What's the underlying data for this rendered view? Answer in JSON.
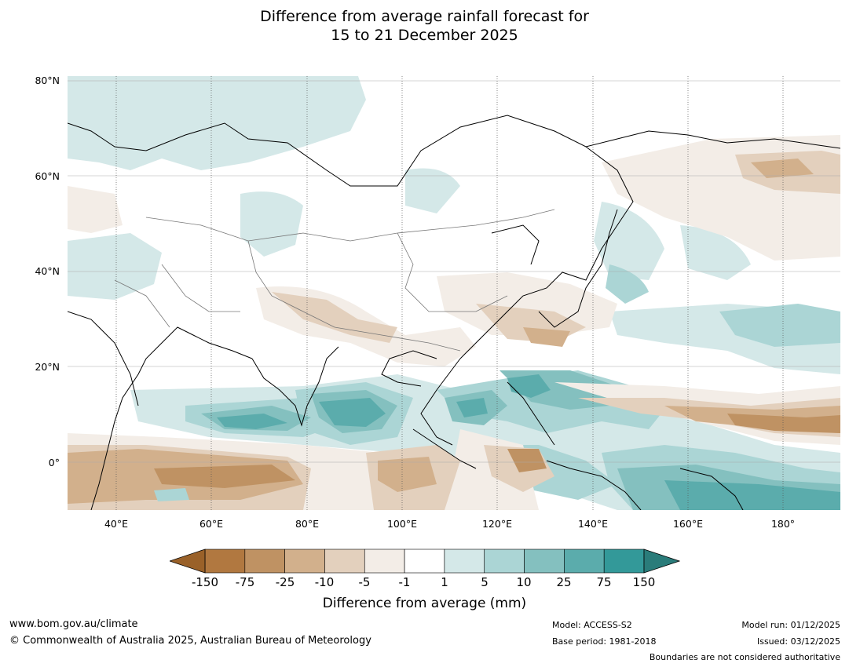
{
  "title": {
    "line1": "Difference from average rainfall forecast for",
    "line2": "15 to 21 December 2025"
  },
  "map": {
    "lat_labels": [
      "80°N",
      "60°N",
      "40°N",
      "20°N",
      "0°"
    ],
    "lon_labels": [
      "40°E",
      "60°E",
      "80°E",
      "100°E",
      "120°E",
      "140°E",
      "160°E",
      "180°"
    ],
    "extent": {
      "lon": [
        30,
        192
      ],
      "lat": [
        -10,
        81
      ]
    }
  },
  "legend": {
    "title": "Difference from average (mm)",
    "tick_labels": [
      "-150",
      "-75",
      "-25",
      "-10",
      "-5",
      "-1",
      "1",
      "5",
      "10",
      "25",
      "75",
      "150"
    ],
    "colors": [
      "#b17840",
      "#bf9263",
      "#d2b08c",
      "#e3d0bd",
      "#f3ede7",
      "#ffffff",
      "#d4e8e8",
      "#abd5d5",
      "#84c0bf",
      "#5bacac",
      "#339999"
    ],
    "extend_low_color": "#9a6129",
    "extend_high_color": "#2a7c7a"
  },
  "footer": {
    "website": "www.bom.gov.au/climate",
    "copyright": "© Commonwealth of Australia 2025, Australian Bureau of Meteorology",
    "model": "Model: ACCESS-S2",
    "base_period": "Base period: 1981-2018",
    "model_run": "Model run: 01/12/2025",
    "issued": "Issued: 03/12/2025",
    "disclaimer": "Boundaries are not considered authoritative"
  }
}
